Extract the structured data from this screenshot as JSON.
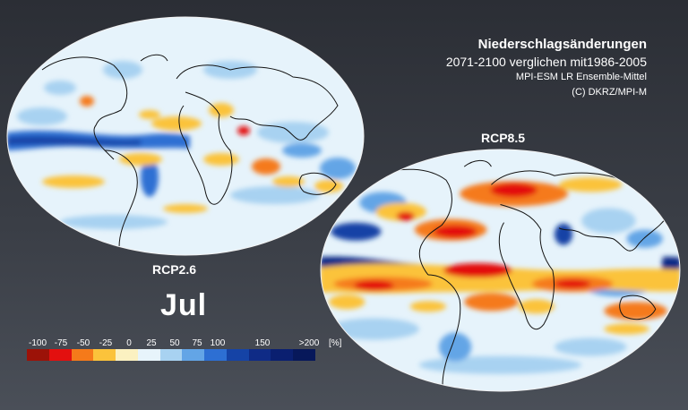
{
  "title": "Niederschlagsänderungen",
  "subtitle": "2071-2100 verglichen mit1986-2005",
  "model": "MPI-ESM LR Ensemble-Mittel",
  "credit": "(C) DKRZ/MPI-M",
  "month": "Jul",
  "scenarios": [
    "RCP2.6",
    "RCP8.5"
  ],
  "legend": {
    "ticks": [
      "-100",
      "-75",
      "-50",
      "-25",
      "0",
      "25",
      "50",
      "75",
      "100",
      "150",
      ">200"
    ],
    "unit": "[%]",
    "colors": [
      "#9c1208",
      "#e3100f",
      "#f57a1a",
      "#fbc33b",
      "#fbf1c1",
      "#e7f4fb",
      "#a8d2f1",
      "#63a5e6",
      "#2d6fd3",
      "#1543a6",
      "#0f2b86",
      "#0a1f70",
      "#07185a"
    ]
  },
  "colors": {
    "ocean_base": "#e6f3fb",
    "coastline": "#141414"
  }
}
